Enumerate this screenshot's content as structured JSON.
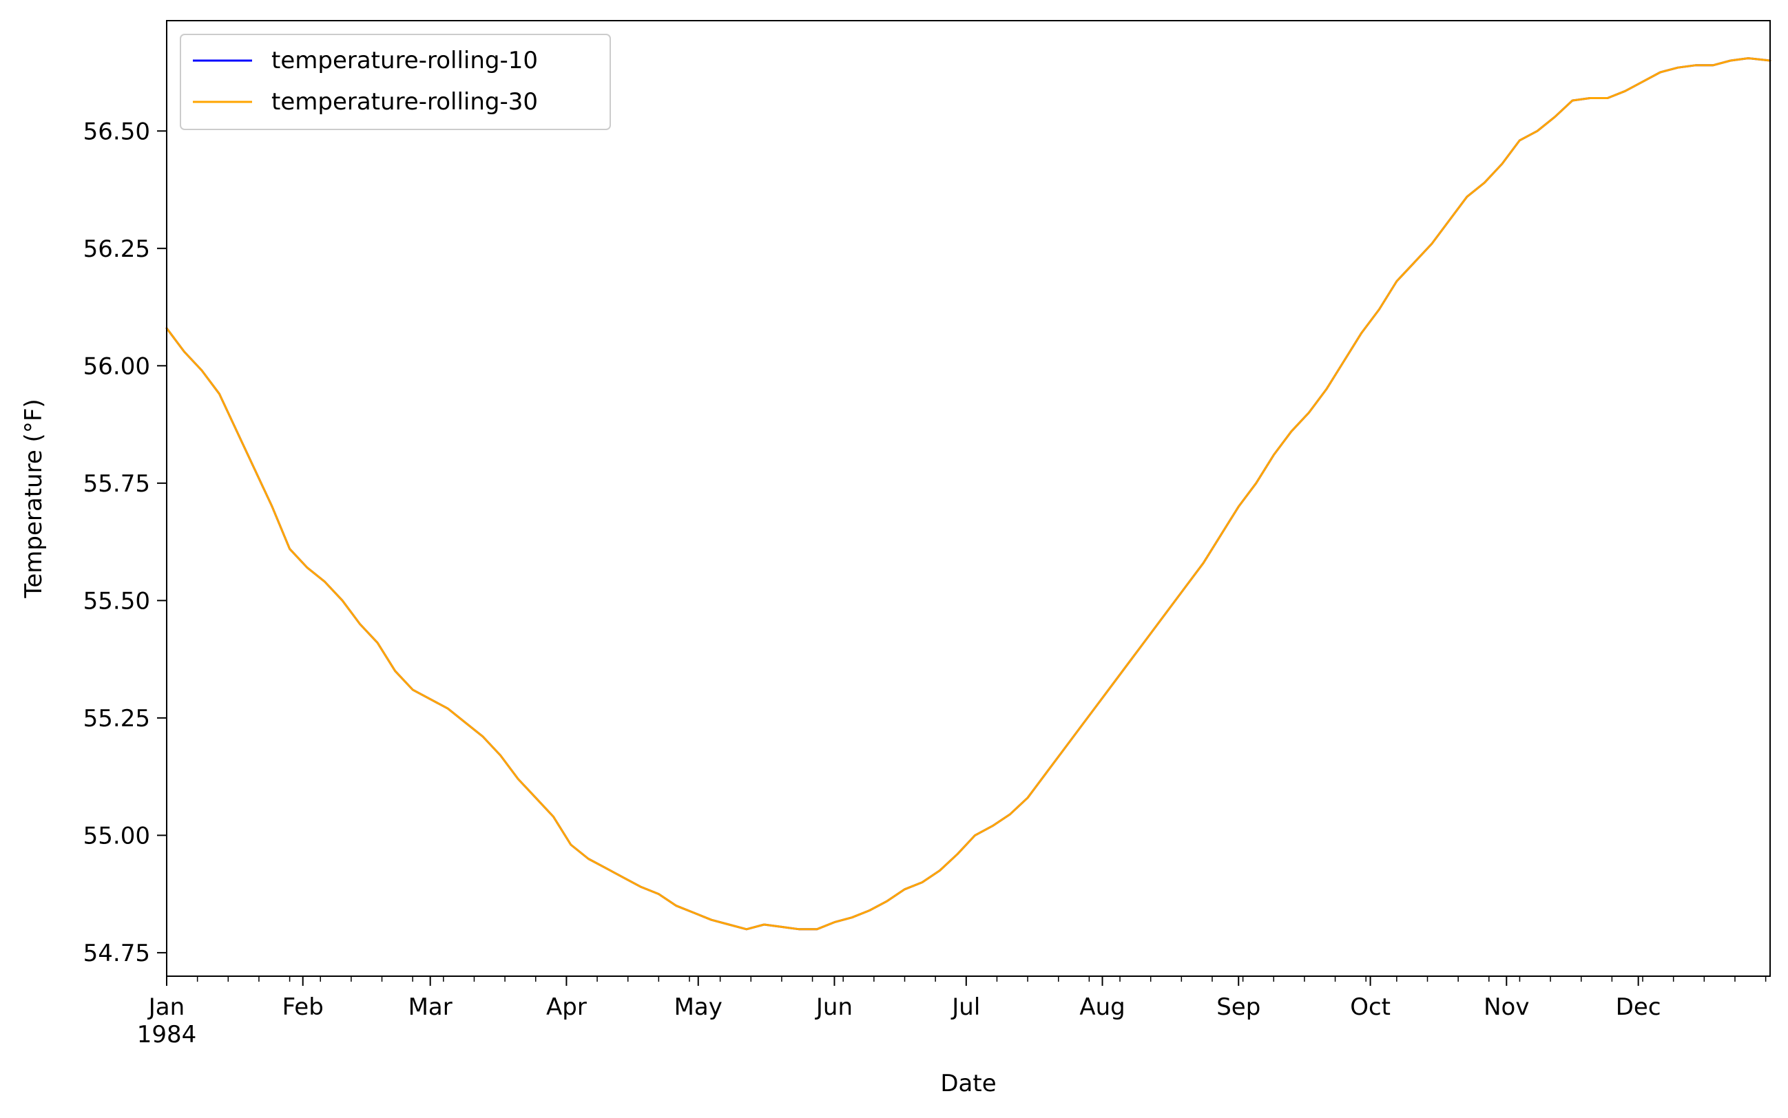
{
  "chart_data": {
    "type": "line",
    "title": "",
    "xlabel": "Date",
    "ylabel": "Temperature ($^\\circ$F)",
    "ylabel_display": "Temperature (°F)",
    "x_range": [
      "1984-01-01",
      "1984-12-31"
    ],
    "ylim": [
      54.7,
      56.735
    ],
    "grid": false,
    "legend": "upper-left",
    "x_ticks": [
      {
        "date": "1984-01-01",
        "label": "Jan",
        "sublabel": "1984"
      },
      {
        "date": "1984-02-01",
        "label": "Feb"
      },
      {
        "date": "1984-03-01",
        "label": "Mar"
      },
      {
        "date": "1984-04-01",
        "label": "Apr"
      },
      {
        "date": "1984-05-01",
        "label": "May"
      },
      {
        "date": "1984-06-01",
        "label": "Jun"
      },
      {
        "date": "1984-07-01",
        "label": "Jul"
      },
      {
        "date": "1984-08-01",
        "label": "Aug"
      },
      {
        "date": "1984-09-01",
        "label": "Sep"
      },
      {
        "date": "1984-10-01",
        "label": "Oct"
      },
      {
        "date": "1984-11-01",
        "label": "Nov"
      },
      {
        "date": "1984-12-01",
        "label": "Dec"
      }
    ],
    "y_ticks": [
      {
        "value": 54.75,
        "label": "54.75"
      },
      {
        "value": 55.0,
        "label": "55.00"
      },
      {
        "value": 55.25,
        "label": "55.25"
      },
      {
        "value": 55.5,
        "label": "55.50"
      },
      {
        "value": 55.75,
        "label": "55.75"
      },
      {
        "value": 56.0,
        "label": "56.00"
      },
      {
        "value": 56.25,
        "label": "56.25"
      },
      {
        "value": 56.5,
        "label": "56.50"
      }
    ],
    "series": [
      {
        "name": "temperature-rolling-10",
        "color": "#0000ff",
        "points": [
          [
            "1984-01-01",
            56.08
          ],
          [
            "1984-01-05",
            56.03
          ],
          [
            "1984-01-09",
            55.99
          ],
          [
            "1984-01-13",
            55.94
          ],
          [
            "1984-01-17",
            55.86
          ],
          [
            "1984-01-21",
            55.78
          ],
          [
            "1984-01-25",
            55.7
          ],
          [
            "1984-01-29",
            55.61
          ],
          [
            "1984-02-02",
            55.57
          ],
          [
            "1984-02-06",
            55.54
          ],
          [
            "1984-02-10",
            55.5
          ],
          [
            "1984-02-14",
            55.45
          ],
          [
            "1984-02-18",
            55.41
          ],
          [
            "1984-02-22",
            55.35
          ],
          [
            "1984-02-26",
            55.31
          ],
          [
            "1984-03-01",
            55.29
          ],
          [
            "1984-03-05",
            55.27
          ],
          [
            "1984-03-09",
            55.24
          ],
          [
            "1984-03-13",
            55.21
          ],
          [
            "1984-03-17",
            55.17
          ],
          [
            "1984-03-21",
            55.12
          ],
          [
            "1984-03-25",
            55.08
          ],
          [
            "1984-03-29",
            55.04
          ],
          [
            "1984-04-02",
            54.98
          ],
          [
            "1984-04-06",
            54.95
          ],
          [
            "1984-04-10",
            54.93
          ],
          [
            "1984-04-14",
            54.91
          ],
          [
            "1984-04-18",
            54.89
          ],
          [
            "1984-04-22",
            54.875
          ],
          [
            "1984-04-26",
            54.85
          ],
          [
            "1984-04-30",
            54.835
          ],
          [
            "1984-05-04",
            54.82
          ],
          [
            "1984-05-08",
            54.81
          ],
          [
            "1984-05-12",
            54.8
          ],
          [
            "1984-05-16",
            54.81
          ],
          [
            "1984-05-20",
            54.805
          ],
          [
            "1984-05-24",
            54.8
          ],
          [
            "1984-05-28",
            54.8
          ],
          [
            "1984-06-01",
            54.815
          ],
          [
            "1984-06-05",
            54.825
          ],
          [
            "1984-06-09",
            54.84
          ],
          [
            "1984-06-13",
            54.86
          ],
          [
            "1984-06-17",
            54.885
          ],
          [
            "1984-06-21",
            54.9
          ],
          [
            "1984-06-25",
            54.925
          ],
          [
            "1984-06-29",
            54.96
          ],
          [
            "1984-07-03",
            55.0
          ],
          [
            "1984-07-07",
            55.02
          ],
          [
            "1984-07-11",
            55.045
          ],
          [
            "1984-07-15",
            55.08
          ],
          [
            "1984-07-19",
            55.13
          ],
          [
            "1984-07-23",
            55.18
          ],
          [
            "1984-07-27",
            55.23
          ],
          [
            "1984-07-31",
            55.28
          ],
          [
            "1984-08-04",
            55.33
          ],
          [
            "1984-08-08",
            55.38
          ],
          [
            "1984-08-12",
            55.43
          ],
          [
            "1984-08-16",
            55.48
          ],
          [
            "1984-08-20",
            55.53
          ],
          [
            "1984-08-24",
            55.58
          ],
          [
            "1984-08-28",
            55.64
          ],
          [
            "1984-09-01",
            55.7
          ],
          [
            "1984-09-05",
            55.75
          ],
          [
            "1984-09-09",
            55.81
          ],
          [
            "1984-09-13",
            55.86
          ],
          [
            "1984-09-17",
            55.9
          ],
          [
            "1984-09-21",
            55.95
          ],
          [
            "1984-09-25",
            56.01
          ],
          [
            "1984-09-29",
            56.07
          ],
          [
            "1984-10-03",
            56.12
          ],
          [
            "1984-10-07",
            56.18
          ],
          [
            "1984-10-11",
            56.22
          ],
          [
            "1984-10-15",
            56.26
          ],
          [
            "1984-10-19",
            56.31
          ],
          [
            "1984-10-23",
            56.36
          ],
          [
            "1984-10-27",
            56.39
          ],
          [
            "1984-10-31",
            56.43
          ],
          [
            "1984-11-04",
            56.48
          ],
          [
            "1984-11-08",
            56.5
          ],
          [
            "1984-11-12",
            56.53
          ],
          [
            "1984-11-16",
            56.565
          ],
          [
            "1984-11-20",
            56.57
          ],
          [
            "1984-11-24",
            56.57
          ],
          [
            "1984-11-28",
            56.585
          ],
          [
            "1984-12-02",
            56.605
          ],
          [
            "1984-12-06",
            56.625
          ],
          [
            "1984-12-10",
            56.635
          ],
          [
            "1984-12-14",
            56.64
          ],
          [
            "1984-12-18",
            56.64
          ],
          [
            "1984-12-22",
            56.65
          ],
          [
            "1984-12-26",
            56.655
          ],
          [
            "1984-12-31",
            56.65
          ]
        ]
      },
      {
        "name": "temperature-rolling-30",
        "color": "#ffa500",
        "points": [
          [
            "1984-01-01",
            56.08
          ],
          [
            "1984-01-05",
            56.03
          ],
          [
            "1984-01-09",
            55.99
          ],
          [
            "1984-01-13",
            55.94
          ],
          [
            "1984-01-17",
            55.86
          ],
          [
            "1984-01-21",
            55.78
          ],
          [
            "1984-01-25",
            55.7
          ],
          [
            "1984-01-29",
            55.61
          ],
          [
            "1984-02-02",
            55.57
          ],
          [
            "1984-02-06",
            55.54
          ],
          [
            "1984-02-10",
            55.5
          ],
          [
            "1984-02-14",
            55.45
          ],
          [
            "1984-02-18",
            55.41
          ],
          [
            "1984-02-22",
            55.35
          ],
          [
            "1984-02-26",
            55.31
          ],
          [
            "1984-03-01",
            55.29
          ],
          [
            "1984-03-05",
            55.27
          ],
          [
            "1984-03-09",
            55.24
          ],
          [
            "1984-03-13",
            55.21
          ],
          [
            "1984-03-17",
            55.17
          ],
          [
            "1984-03-21",
            55.12
          ],
          [
            "1984-03-25",
            55.08
          ],
          [
            "1984-03-29",
            55.04
          ],
          [
            "1984-04-02",
            54.98
          ],
          [
            "1984-04-06",
            54.95
          ],
          [
            "1984-04-10",
            54.93
          ],
          [
            "1984-04-14",
            54.91
          ],
          [
            "1984-04-18",
            54.89
          ],
          [
            "1984-04-22",
            54.875
          ],
          [
            "1984-04-26",
            54.85
          ],
          [
            "1984-04-30",
            54.835
          ],
          [
            "1984-05-04",
            54.82
          ],
          [
            "1984-05-08",
            54.81
          ],
          [
            "1984-05-12",
            54.8
          ],
          [
            "1984-05-16",
            54.81
          ],
          [
            "1984-05-20",
            54.805
          ],
          [
            "1984-05-24",
            54.8
          ],
          [
            "1984-05-28",
            54.8
          ],
          [
            "1984-06-01",
            54.815
          ],
          [
            "1984-06-05",
            54.825
          ],
          [
            "1984-06-09",
            54.84
          ],
          [
            "1984-06-13",
            54.86
          ],
          [
            "1984-06-17",
            54.885
          ],
          [
            "1984-06-21",
            54.9
          ],
          [
            "1984-06-25",
            54.925
          ],
          [
            "1984-06-29",
            54.96
          ],
          [
            "1984-07-03",
            55.0
          ],
          [
            "1984-07-07",
            55.02
          ],
          [
            "1984-07-11",
            55.045
          ],
          [
            "1984-07-15",
            55.08
          ],
          [
            "1984-07-19",
            55.13
          ],
          [
            "1984-07-23",
            55.18
          ],
          [
            "1984-07-27",
            55.23
          ],
          [
            "1984-07-31",
            55.28
          ],
          [
            "1984-08-04",
            55.33
          ],
          [
            "1984-08-08",
            55.38
          ],
          [
            "1984-08-12",
            55.43
          ],
          [
            "1984-08-16",
            55.48
          ],
          [
            "1984-08-20",
            55.53
          ],
          [
            "1984-08-24",
            55.58
          ],
          [
            "1984-08-28",
            55.64
          ],
          [
            "1984-09-01",
            55.7
          ],
          [
            "1984-09-05",
            55.75
          ],
          [
            "1984-09-09",
            55.81
          ],
          [
            "1984-09-13",
            55.86
          ],
          [
            "1984-09-17",
            55.9
          ],
          [
            "1984-09-21",
            55.95
          ],
          [
            "1984-09-25",
            56.01
          ],
          [
            "1984-09-29",
            56.07
          ],
          [
            "1984-10-03",
            56.12
          ],
          [
            "1984-10-07",
            56.18
          ],
          [
            "1984-10-11",
            56.22
          ],
          [
            "1984-10-15",
            56.26
          ],
          [
            "1984-10-19",
            56.31
          ],
          [
            "1984-10-23",
            56.36
          ],
          [
            "1984-10-27",
            56.39
          ],
          [
            "1984-10-31",
            56.43
          ],
          [
            "1984-11-04",
            56.48
          ],
          [
            "1984-11-08",
            56.5
          ],
          [
            "1984-11-12",
            56.53
          ],
          [
            "1984-11-16",
            56.565
          ],
          [
            "1984-11-20",
            56.57
          ],
          [
            "1984-11-24",
            56.57
          ],
          [
            "1984-11-28",
            56.585
          ],
          [
            "1984-12-02",
            56.605
          ],
          [
            "1984-12-06",
            56.625
          ],
          [
            "1984-12-10",
            56.635
          ],
          [
            "1984-12-14",
            56.64
          ],
          [
            "1984-12-18",
            56.64
          ],
          [
            "1984-12-22",
            56.65
          ],
          [
            "1984-12-26",
            56.655
          ],
          [
            "1984-12-31",
            56.65
          ]
        ]
      }
    ]
  }
}
